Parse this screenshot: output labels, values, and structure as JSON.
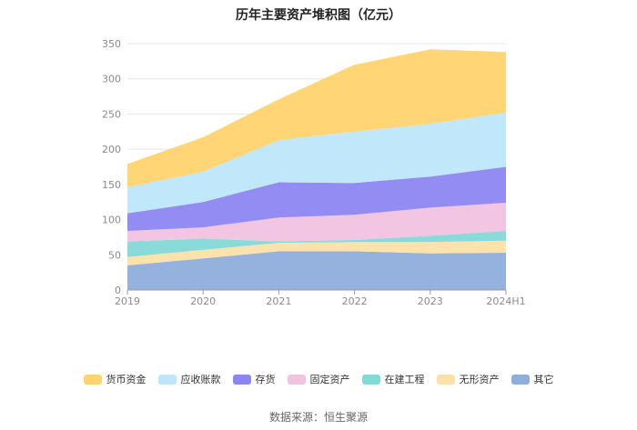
{
  "chart_data": {
    "type": "area",
    "stacked": true,
    "title": "历年主要资产堆积图（亿元）",
    "categories": [
      "2019",
      "2020",
      "2021",
      "2022",
      "2023",
      "2024H1"
    ],
    "ylim": [
      0,
      350
    ],
    "yticks": [
      0,
      50,
      100,
      150,
      200,
      250,
      300,
      350
    ],
    "grid": true,
    "legend_position": "bottom",
    "series": [
      {
        "name": "其它",
        "color": "#8eaedb",
        "values": [
          35,
          45,
          55,
          55,
          52,
          53
        ]
      },
      {
        "name": "无形资产",
        "color": "#fde0a8",
        "values": [
          12,
          12,
          12,
          13,
          16,
          17
        ]
      },
      {
        "name": "在建工程",
        "color": "#82d9d6",
        "values": [
          22,
          16,
          2,
          3,
          9,
          14
        ]
      },
      {
        "name": "固定资产",
        "color": "#f1c3e0",
        "values": [
          15,
          16,
          34,
          36,
          40,
          40
        ]
      },
      {
        "name": "存货",
        "color": "#8d86f2",
        "values": [
          25,
          36,
          50,
          45,
          44,
          51
        ]
      },
      {
        "name": "应收账款",
        "color": "#bde6fa",
        "values": [
          37,
          43,
          60,
          73,
          75,
          77
        ]
      },
      {
        "name": "货币资金",
        "color": "#ffd36f",
        "values": [
          33,
          49,
          58,
          95,
          106,
          86
        ]
      }
    ],
    "source": "数据来源：恒生聚源"
  }
}
